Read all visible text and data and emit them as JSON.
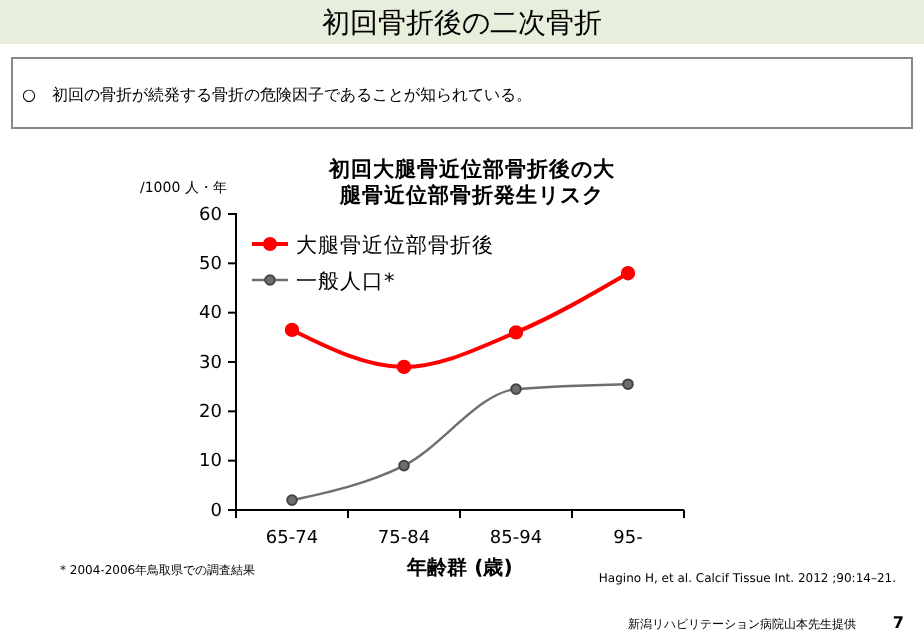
{
  "chart_data": {
    "type": "line",
    "title": "初回大腿骨近位部骨折後の大腿骨近位部骨折発生リスク",
    "subtitle": "初回骨折後の二次骨折",
    "ylabel": "/1000 人・年",
    "xlabel": "年齢群 (歳)",
    "categories": [
      "65-74",
      "75-84",
      "85-94",
      "95-"
    ],
    "series": [
      {
        "name": "大腿骨近位部骨折後",
        "color": "#ff0000",
        "values": [
          36.5,
          29,
          36,
          48
        ]
      },
      {
        "name": "一般人口*",
        "color": "#6e6e6e",
        "values": [
          2,
          9,
          24.5,
          25.5
        ]
      }
    ],
    "ylim": [
      0,
      60
    ],
    "yticks": [
      0,
      10,
      20,
      30,
      40,
      50,
      60
    ],
    "grid": false,
    "legend": "top left",
    "marker": "circle",
    "line_style": "solid",
    "annotations": [
      "○　初回の骨折が続発する骨折の危険因子であることが知られている。",
      "* 2004-2006年鳥取県での調査結果",
      "Hagino H, et al. Calcif Tissue Int. 2012 ;90:14–21.",
      "新潟リハビリテーション病院山本先生提供",
      "7"
    ]
  }
}
